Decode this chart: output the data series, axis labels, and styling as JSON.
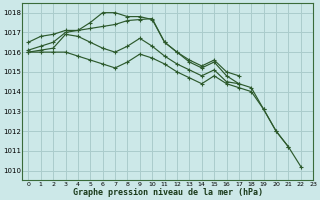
{
  "title": "Graphe pression niveau de la mer (hPa)",
  "bg_color": "#cce8e8",
  "grid_color": "#aacccc",
  "line_color": "#2d5a2d",
  "xlim": [
    -0.5,
    23
  ],
  "ylim": [
    1009.5,
    1018.5
  ],
  "yticks": [
    1010,
    1011,
    1012,
    1013,
    1014,
    1015,
    1016,
    1017,
    1018
  ],
  "xticks": [
    0,
    1,
    2,
    3,
    4,
    5,
    6,
    7,
    8,
    9,
    10,
    11,
    12,
    13,
    14,
    15,
    16,
    17,
    18,
    19,
    20,
    21,
    22,
    23
  ],
  "series": [
    {
      "x": [
        0,
        1,
        2,
        3,
        4,
        5,
        6,
        7,
        8,
        9,
        10,
        11,
        12,
        13,
        14,
        15,
        16,
        17,
        18,
        19,
        20,
        21
      ],
      "y": [
        1016.5,
        1016.8,
        1016.9,
        1017.1,
        1017.1,
        1017.5,
        1018.0,
        1018.0,
        1017.8,
        1017.8,
        1017.65,
        1016.5,
        1016.0,
        1015.5,
        1015.2,
        1015.5,
        1014.8,
        1014.4,
        1014.2,
        1013.1,
        1012.0,
        1011.2
      ]
    },
    {
      "x": [
        0,
        1,
        2,
        3,
        4,
        5,
        6,
        7,
        8,
        9,
        10,
        11,
        12,
        13,
        14,
        15,
        16,
        17
      ],
      "y": [
        1016.1,
        1016.3,
        1016.5,
        1017.0,
        1017.1,
        1017.2,
        1017.3,
        1017.4,
        1017.6,
        1017.65,
        1017.7,
        1016.5,
        1016.0,
        1015.6,
        1015.3,
        1015.6,
        1015.0,
        1014.8
      ]
    },
    {
      "x": [
        0,
        1,
        2,
        3,
        4,
        5,
        6,
        7,
        8,
        9,
        10,
        11,
        12,
        13,
        14,
        15,
        16,
        17
      ],
      "y": [
        1016.0,
        1016.1,
        1016.2,
        1016.9,
        1016.8,
        1016.5,
        1016.2,
        1016.0,
        1016.3,
        1016.7,
        1016.3,
        1015.8,
        1015.4,
        1015.1,
        1014.8,
        1015.1,
        1014.5,
        1014.4
      ]
    },
    {
      "x": [
        0,
        1,
        2,
        3,
        4,
        5,
        6,
        7,
        8,
        9,
        10,
        11,
        12,
        13,
        14,
        15,
        16,
        17,
        18,
        19,
        20,
        21,
        22
      ],
      "y": [
        1016.0,
        1016.0,
        1016.0,
        1016.0,
        1015.8,
        1015.6,
        1015.4,
        1015.2,
        1015.5,
        1015.9,
        1015.7,
        1015.4,
        1015.0,
        1014.7,
        1014.4,
        1014.8,
        1014.4,
        1014.2,
        1014.0,
        1013.1,
        1012.0,
        1011.2,
        1010.2
      ]
    }
  ]
}
